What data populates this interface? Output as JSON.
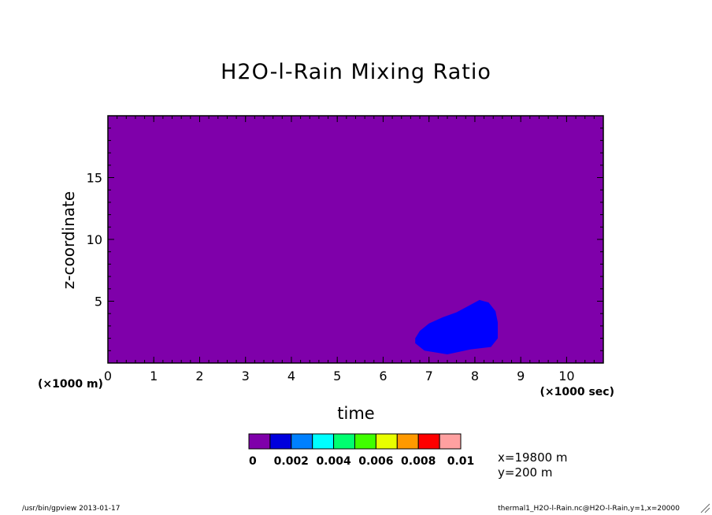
{
  "chart_data": {
    "type": "heatmap",
    "title": "H2O-l-Rain Mixing Ratio",
    "xlabel": "time",
    "ylabel": "z-coordinate",
    "x_unit": "(×1000 sec)",
    "y_unit": "(×1000 m)",
    "xlim": [
      0,
      10.8
    ],
    "ylim": [
      0,
      20
    ],
    "x_ticks": [
      0,
      1,
      2,
      3,
      4,
      5,
      6,
      7,
      8,
      9,
      10
    ],
    "y_ticks": [
      5,
      10,
      15
    ],
    "background_level": 0,
    "colorbar": {
      "colors": [
        "#7f00aa",
        "#0000dd",
        "#0080ff",
        "#00ffff",
        "#00ff70",
        "#40ff00",
        "#e8ff00",
        "#ff9900",
        "#ff0000",
        "#ffa0a0"
      ],
      "tick_labels": [
        "0",
        "0.002",
        "0.004",
        "0.006",
        "0.008",
        "0.01"
      ]
    },
    "region": {
      "level_range": [
        0.001,
        0.002
      ],
      "color": "#0000ff",
      "outline_xy": [
        [
          6.7,
          2.0
        ],
        [
          6.8,
          2.6
        ],
        [
          7.0,
          3.2
        ],
        [
          7.3,
          3.7
        ],
        [
          7.6,
          4.1
        ],
        [
          7.9,
          4.7
        ],
        [
          8.1,
          5.1
        ],
        [
          8.3,
          4.9
        ],
        [
          8.45,
          4.2
        ],
        [
          8.5,
          3.3
        ],
        [
          8.5,
          2.0
        ],
        [
          8.35,
          1.3
        ],
        [
          7.9,
          1.1
        ],
        [
          7.4,
          0.7
        ],
        [
          6.9,
          1.0
        ],
        [
          6.7,
          1.6
        ]
      ]
    }
  },
  "info": {
    "x": "x=19800  m",
    "y": "y=200  m"
  },
  "footer": {
    "left": "/usr/bin/gpview  2013-01-17",
    "right": "thermal1_H2O-l-Rain.nc@H2O-l-Rain,y=1,x=20000"
  }
}
